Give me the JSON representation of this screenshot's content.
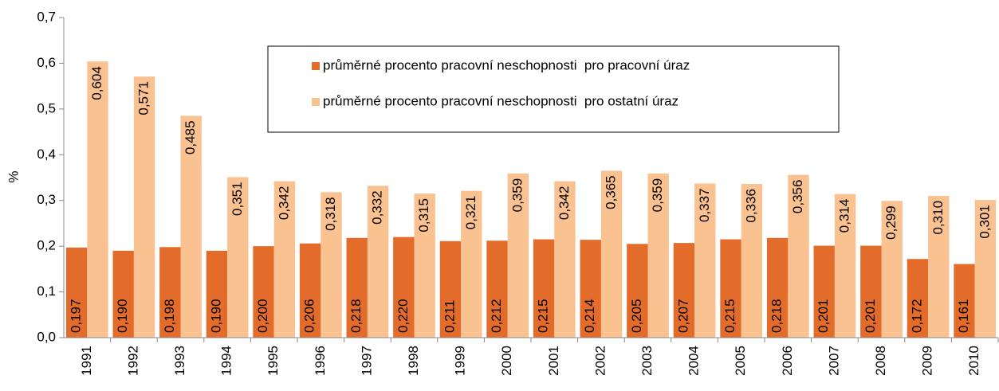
{
  "chart_data": {
    "type": "bar",
    "y_label": "%",
    "categories": [
      "1991",
      "1992",
      "1993",
      "1994",
      "1995",
      "1996",
      "1997",
      "1998",
      "1999",
      "2000",
      "2001",
      "2002",
      "2003",
      "2004",
      "2005",
      "2006",
      "2007",
      "2008",
      "2009",
      "2010"
    ],
    "series": [
      {
        "name": "průměrné procento pracovní neschopnosti  pro pracovní úraz",
        "color": "#e46c2a",
        "values": [
          0.197,
          0.19,
          0.198,
          0.19,
          0.2,
          0.206,
          0.218,
          0.22,
          0.211,
          0.212,
          0.215,
          0.214,
          0.205,
          0.207,
          0.215,
          0.218,
          0.201,
          0.201,
          0.172,
          0.161
        ],
        "value_labels": [
          "0,197",
          "0,190",
          "0,198",
          "0,190",
          "0,200",
          "0,206",
          "0,218",
          "0,220",
          "0,211",
          "0,212",
          "0,215",
          "0,214",
          "0,205",
          "0,207",
          "0,215",
          "0,218",
          "0,201",
          "0,201",
          "0,172",
          "0,161"
        ]
      },
      {
        "name": "průměrné procento pracovní neschopnosti  pro ostatní úraz",
        "color": "#fac191",
        "values": [
          0.604,
          0.571,
          0.485,
          0.351,
          0.342,
          0.318,
          0.332,
          0.315,
          0.321,
          0.359,
          0.342,
          0.365,
          0.359,
          0.337,
          0.336,
          0.356,
          0.314,
          0.299,
          0.31,
          0.301
        ],
        "value_labels": [
          "0,604",
          "0,571",
          "0,485",
          "0,351",
          "0,342",
          "0,318",
          "0,332",
          "0,315",
          "0,321",
          "0,359",
          "0,342",
          "0,365",
          "0,359",
          "0,337",
          "0,336",
          "0,356",
          "0,314",
          "0,299",
          "0,310",
          "0,301"
        ]
      }
    ],
    "ylim": [
      0,
      0.7
    ],
    "yticks": [
      {
        "value": 0,
        "label": "0,0"
      },
      {
        "value": 0.1,
        "label": "0,1"
      },
      {
        "value": 0.2,
        "label": "0,2"
      },
      {
        "value": 0.3,
        "label": "0,3"
      },
      {
        "value": 0.4,
        "label": "0,4"
      },
      {
        "value": 0.5,
        "label": "0,5"
      },
      {
        "value": 0.6,
        "label": "0,6"
      },
      {
        "value": 0.7,
        "label": "0,7"
      }
    ],
    "grid": false,
    "legend": "top"
  }
}
